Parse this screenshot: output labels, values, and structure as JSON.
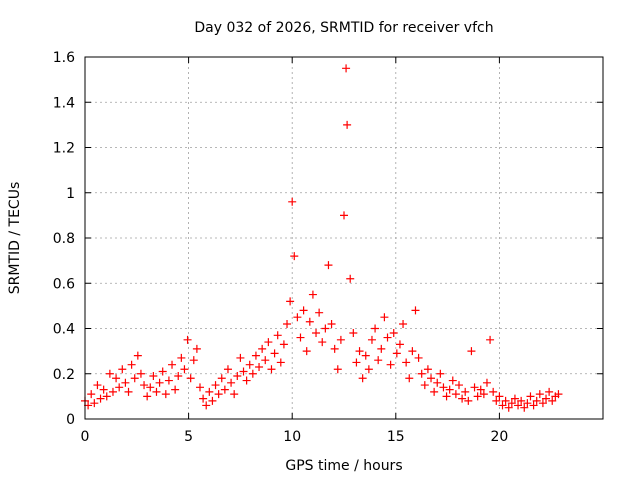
{
  "chart_data": {
    "type": "scatter",
    "title": "Day 032 of 2026, SRMTID for receiver vfch",
    "xlabel": "GPS time / hours",
    "ylabel": "SRMTID / TECUs",
    "xlim": [
      0,
      25
    ],
    "ylim": [
      0,
      1.6
    ],
    "xticks": [
      0,
      5,
      10,
      15,
      20
    ],
    "xtick_labels": [
      "0",
      "5",
      "10",
      "15",
      "20"
    ],
    "yticks": [
      0,
      0.2,
      0.4,
      0.6,
      0.8,
      1.0,
      1.2,
      1.4,
      1.6
    ],
    "ytick_labels": [
      "0",
      "0.2",
      "0.4",
      "0.6",
      "0.8",
      "1",
      "1.2",
      "1.4",
      "1.6"
    ],
    "grid": true,
    "marker": "+",
    "series": [
      {
        "name": "SRMTID",
        "color": "#ff0000",
        "x": [
          0.0,
          0.15,
          0.3,
          0.45,
          0.6,
          0.75,
          0.9,
          1.05,
          1.2,
          1.35,
          1.5,
          1.65,
          1.8,
          1.95,
          2.1,
          2.25,
          2.4,
          2.55,
          2.7,
          2.85,
          3.0,
          3.15,
          3.3,
          3.45,
          3.6,
          3.75,
          3.9,
          4.05,
          4.2,
          4.35,
          4.5,
          4.65,
          4.8,
          4.95,
          5.1,
          5.25,
          5.4,
          5.55,
          5.7,
          5.85,
          6.0,
          6.15,
          6.3,
          6.45,
          6.6,
          6.75,
          6.9,
          7.05,
          7.2,
          7.35,
          7.5,
          7.65,
          7.8,
          7.95,
          8.1,
          8.25,
          8.4,
          8.55,
          8.7,
          8.85,
          9.0,
          9.15,
          9.3,
          9.45,
          9.6,
          9.75,
          9.9,
          10.0,
          10.1,
          10.25,
          10.4,
          10.55,
          10.7,
          10.85,
          11.0,
          11.15,
          11.3,
          11.45,
          11.6,
          11.75,
          11.9,
          12.05,
          12.2,
          12.35,
          12.5,
          12.6,
          12.65,
          12.8,
          12.95,
          13.1,
          13.25,
          13.4,
          13.55,
          13.7,
          13.85,
          14.0,
          14.15,
          14.3,
          14.45,
          14.6,
          14.75,
          14.9,
          15.05,
          15.2,
          15.35,
          15.5,
          15.65,
          15.8,
          15.95,
          16.1,
          16.25,
          16.4,
          16.55,
          16.7,
          16.85,
          17.0,
          17.15,
          17.3,
          17.45,
          17.6,
          17.75,
          17.9,
          18.05,
          18.2,
          18.35,
          18.5,
          18.65,
          18.8,
          18.95,
          19.1,
          19.25,
          19.4,
          19.55,
          19.7,
          19.85,
          20.0,
          20.15,
          20.3,
          20.45,
          20.6,
          20.75,
          20.9,
          21.05,
          21.2,
          21.35,
          21.5,
          21.65,
          21.8,
          21.95,
          22.1,
          22.25,
          22.4,
          22.55,
          22.7,
          22.85
        ],
        "y": [
          0.08,
          0.06,
          0.11,
          0.07,
          0.15,
          0.09,
          0.13,
          0.1,
          0.2,
          0.12,
          0.18,
          0.14,
          0.22,
          0.16,
          0.12,
          0.24,
          0.18,
          0.28,
          0.2,
          0.15,
          0.1,
          0.14,
          0.19,
          0.12,
          0.16,
          0.21,
          0.11,
          0.17,
          0.24,
          0.13,
          0.19,
          0.27,
          0.22,
          0.35,
          0.18,
          0.26,
          0.31,
          0.14,
          0.09,
          0.06,
          0.12,
          0.08,
          0.15,
          0.11,
          0.18,
          0.13,
          0.22,
          0.16,
          0.11,
          0.19,
          0.27,
          0.21,
          0.17,
          0.24,
          0.2,
          0.28,
          0.23,
          0.31,
          0.26,
          0.34,
          0.22,
          0.29,
          0.37,
          0.25,
          0.33,
          0.42,
          0.52,
          0.96,
          0.72,
          0.45,
          0.36,
          0.48,
          0.3,
          0.43,
          0.55,
          0.38,
          0.47,
          0.34,
          0.4,
          0.68,
          0.42,
          0.31,
          0.22,
          0.35,
          0.9,
          1.55,
          1.3,
          0.62,
          0.38,
          0.25,
          0.3,
          0.18,
          0.28,
          0.22,
          0.35,
          0.4,
          0.26,
          0.31,
          0.45,
          0.36,
          0.24,
          0.38,
          0.29,
          0.33,
          0.42,
          0.25,
          0.18,
          0.3,
          0.48,
          0.27,
          0.2,
          0.15,
          0.22,
          0.18,
          0.12,
          0.16,
          0.2,
          0.14,
          0.1,
          0.13,
          0.17,
          0.11,
          0.15,
          0.09,
          0.12,
          0.08,
          0.3,
          0.14,
          0.1,
          0.13,
          0.11,
          0.16,
          0.35,
          0.12,
          0.08,
          0.1,
          0.06,
          0.08,
          0.05,
          0.07,
          0.09,
          0.06,
          0.08,
          0.05,
          0.07,
          0.1,
          0.06,
          0.08,
          0.11,
          0.07,
          0.09,
          0.12,
          0.08,
          0.1,
          0.11
        ]
      }
    ]
  }
}
